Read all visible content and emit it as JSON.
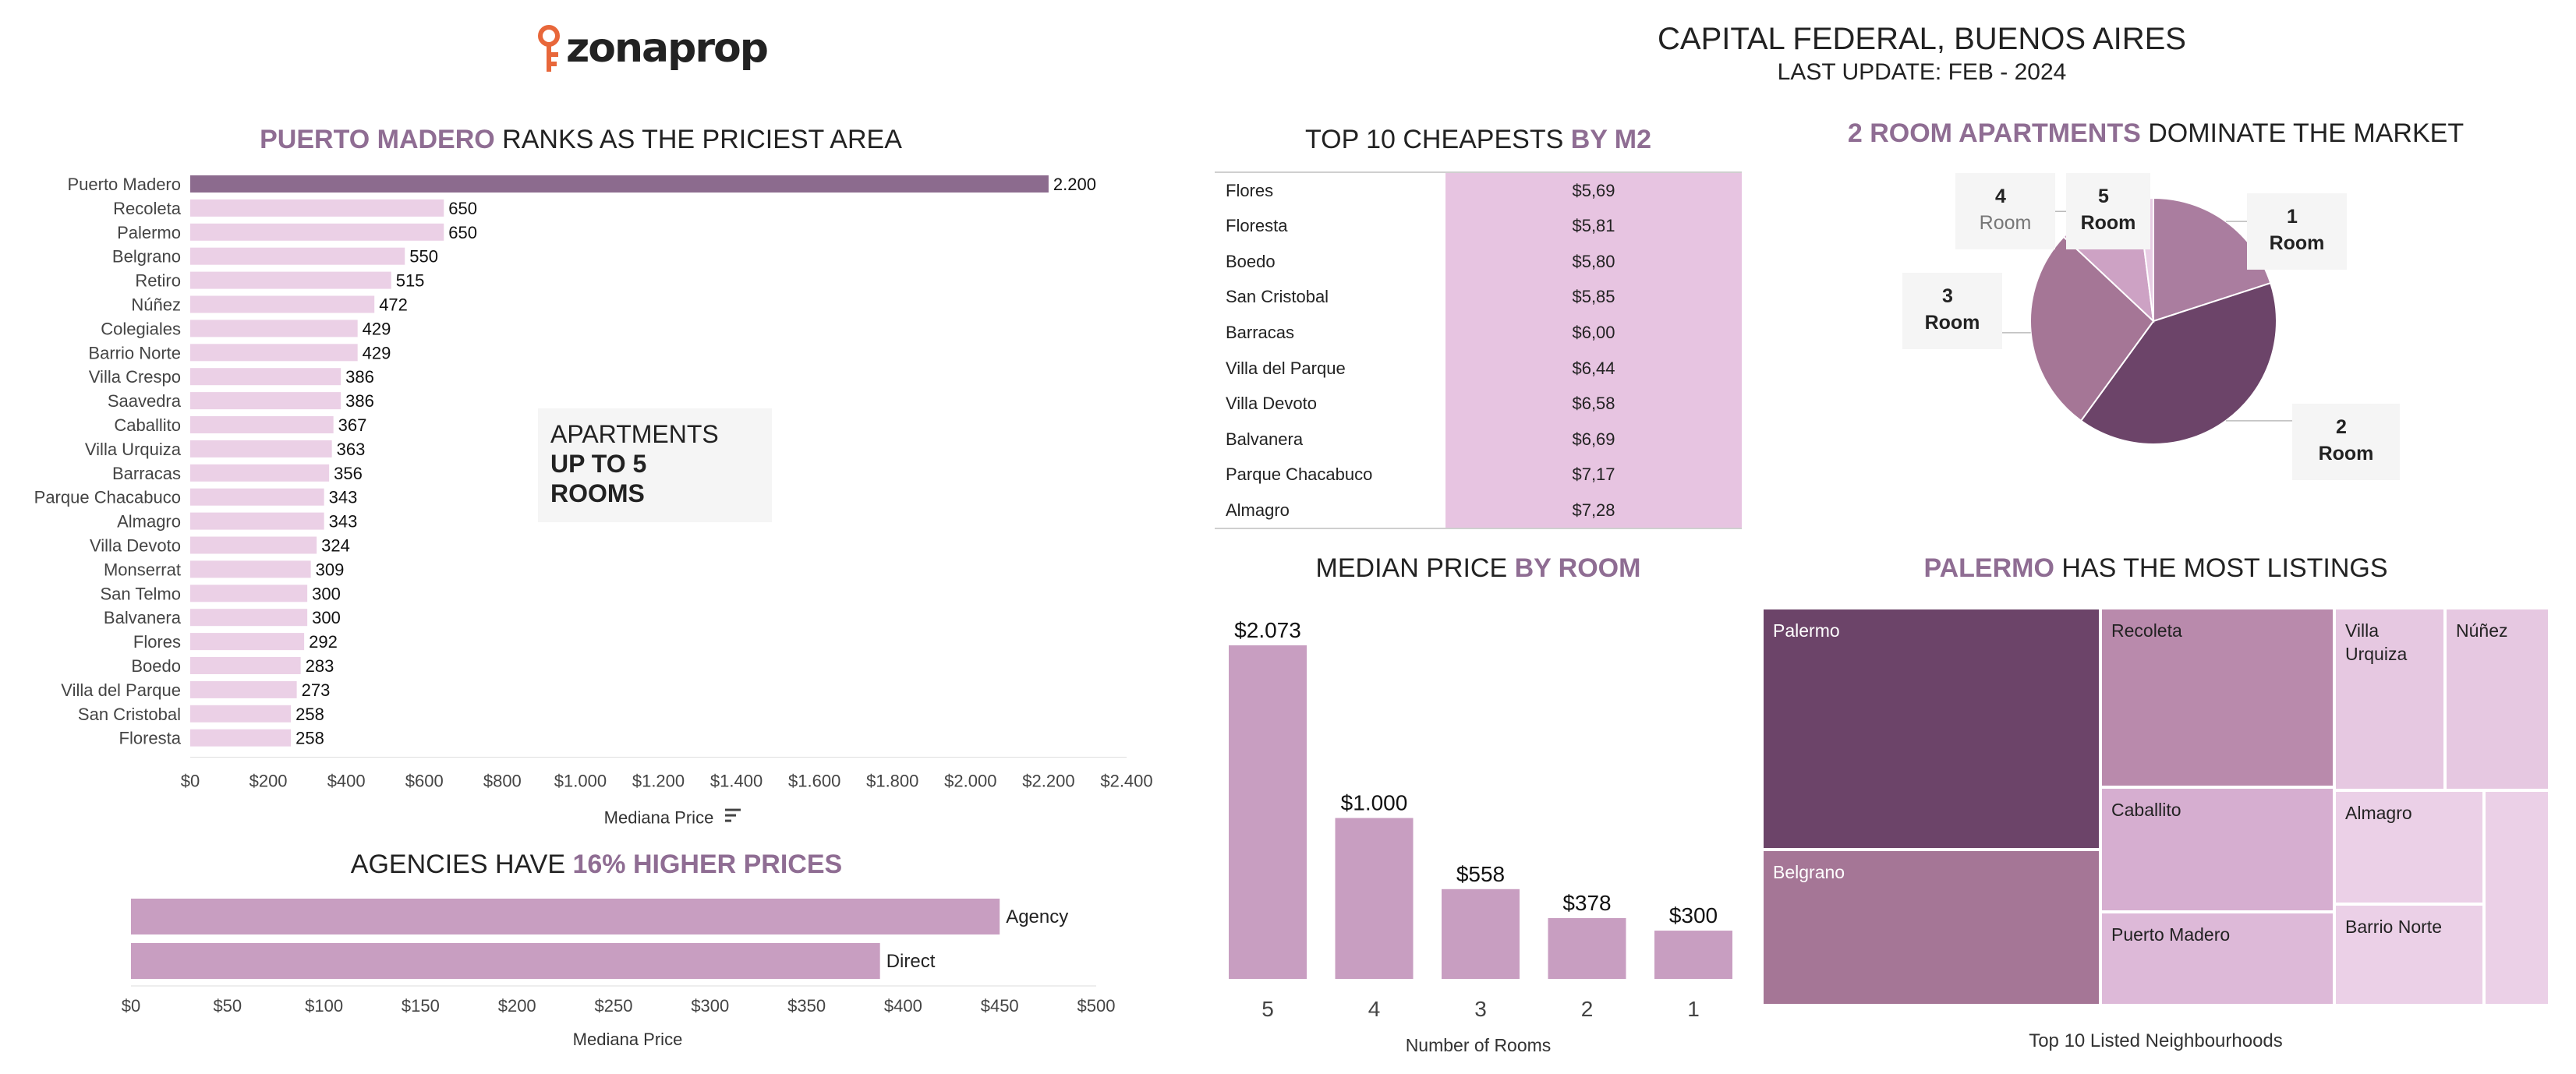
{
  "brand": {
    "logo_text": "zonaprop"
  },
  "header": {
    "title": "CAPITAL FEDERAL, BUENOS AIRES",
    "subtitle": "LAST UPDATE: FEB - 2024"
  },
  "colors": {
    "accent": "#8f6d93",
    "bar_light": "#ebd0e6",
    "bar_dark": "#8c6b8e",
    "bar_mid": "#c89ec1",
    "table_fill": "#e7c4e1"
  },
  "sections": {
    "ranking": {
      "title_accent": "PUERTO MADERO",
      "title_rest": " RANKS AS THE PRICIEST AREA",
      "note_line1": "APARTMENTS",
      "note_line2": "UP TO 5",
      "note_line3": "ROOMS",
      "sort_icon": "sort-descending-icon"
    },
    "cheapest": {
      "title_rest": "TOP 10 CHEAPESTS ",
      "title_accent": "BY M2"
    },
    "pie": {
      "title_accent": "2 ROOM APARTMENTS",
      "title_rest": " DOMINATE THE MARKET"
    },
    "agencies": {
      "title_rest": "AGENCIES HAVE ",
      "title_accent": "16% HIGHER PRICES"
    },
    "median_room": {
      "title_rest": "MEDIAN PRICE ",
      "title_accent": "BY ROOM"
    },
    "listings": {
      "title_accent": "PALERMO",
      "title_rest": " HAS THE MOST LISTINGS"
    }
  },
  "chart_data": [
    {
      "type": "bar",
      "orientation": "horizontal",
      "title": "PUERTO MADERO RANKS AS THE PRICIEST AREA",
      "xlabel": "Mediana Price",
      "categories": [
        "Puerto Madero",
        "Recoleta",
        "Palermo",
        "Belgrano",
        "Retiro",
        "Núñez",
        "Colegiales",
        "Barrio Norte",
        "Villa Crespo",
        "Saavedra",
        "Caballito",
        "Villa Urquiza",
        "Barracas",
        "Parque Chacabuco",
        "Almagro",
        "Villa Devoto",
        "Monserrat",
        "San Telmo",
        "Balvanera",
        "Flores",
        "Boedo",
        "Villa del Parque",
        "San Cristobal",
        "Floresta"
      ],
      "values": [
        2200,
        650,
        650,
        550,
        515,
        472,
        429,
        429,
        386,
        386,
        367,
        363,
        356,
        343,
        343,
        324,
        309,
        300,
        300,
        292,
        283,
        273,
        258,
        258
      ],
      "value_labels": [
        "2.200",
        "650",
        "650",
        "550",
        "515",
        "472",
        "429",
        "429",
        "386",
        "386",
        "367",
        "363",
        "356",
        "343",
        "343",
        "324",
        "309",
        "300",
        "300",
        "292",
        "283",
        "273",
        "258",
        "258"
      ],
      "xlim": [
        0,
        2400
      ],
      "xticks": [
        "$0",
        "$200",
        "$400",
        "$600",
        "$800",
        "$1.000",
        "$1.200",
        "$1.400",
        "$1.600",
        "$1.800",
        "$2.000",
        "$2.200",
        "$2.400"
      ]
    },
    {
      "type": "table",
      "title": "TOP 10 CHEAPESTS BY M2",
      "rows": [
        {
          "name": "Flores",
          "value": "$5,69"
        },
        {
          "name": "Floresta",
          "value": "$5,81"
        },
        {
          "name": "Boedo",
          "value": "$5,80"
        },
        {
          "name": "San Cristobal",
          "value": "$5,85"
        },
        {
          "name": "Barracas",
          "value": "$6,00"
        },
        {
          "name": "Villa del Parque",
          "value": "$6,44"
        },
        {
          "name": "Villa Devoto",
          "value": "$6,58"
        },
        {
          "name": "Balvanera",
          "value": "$6,69"
        },
        {
          "name": "Parque Chacabuco",
          "value": "$7,17"
        },
        {
          "name": "Almagro",
          "value": "$7,28"
        }
      ]
    },
    {
      "type": "pie",
      "title": "2 ROOM APARTMENTS DOMINATE THE MARKET",
      "slices": [
        {
          "num": "1",
          "label": "Room",
          "value": 20,
          "color": "#aa7d9f"
        },
        {
          "num": "2",
          "label": "Room",
          "value": 40,
          "color": "#6c4469"
        },
        {
          "num": "3",
          "label": "Room",
          "value": 27,
          "color": "#a57696"
        },
        {
          "num": "4",
          "label": "Room",
          "value": 11,
          "color": "#cda2c4"
        },
        {
          "num": "5",
          "label": "Room",
          "value": 2,
          "color": "#e8cde4"
        }
      ]
    },
    {
      "type": "bar",
      "orientation": "horizontal",
      "title": "AGENCIES HAVE 16% HIGHER PRICES",
      "xlabel": "Mediana Price",
      "categories": [
        "Agency",
        "Direct"
      ],
      "values": [
        450,
        388
      ],
      "xlim": [
        0,
        500
      ],
      "xticks": [
        "$0",
        "$50",
        "$100",
        "$150",
        "$200",
        "$250",
        "$300",
        "$350",
        "$400",
        "$450",
        "$500"
      ]
    },
    {
      "type": "bar",
      "title": "MEDIAN PRICE BY ROOM",
      "xlabel": "Number of Rooms",
      "categories": [
        "5",
        "4",
        "3",
        "2",
        "1"
      ],
      "values": [
        2073,
        1000,
        558,
        378,
        300
      ],
      "value_labels": [
        "$2.073",
        "$1.000",
        "$558",
        "$378",
        "$300"
      ]
    },
    {
      "type": "treemap",
      "title": "PALERMO HAS THE MOST LISTINGS",
      "xlabel": "Top 10 Listed Neighbourhoods",
      "cells": [
        {
          "name": "Palermo",
          "color": "#6c4469"
        },
        {
          "name": "Belgrano",
          "color": "#a57696"
        },
        {
          "name": "Recoleta",
          "color": "#b98aac"
        },
        {
          "name": "Caballito",
          "color": "#d6aed0"
        },
        {
          "name": "Puerto Madero",
          "color": "#ddb9d8"
        },
        {
          "name": "Villa Urquiza",
          "color": "#e6c8e1"
        },
        {
          "name": "Núñez",
          "color": "#e6c8e1"
        },
        {
          "name": "Almagro",
          "color": "#ebd0e7"
        },
        {
          "name": "Barrio Norte",
          "color": "#ebd0e7"
        },
        {
          "name": "",
          "color": "#ebd0e7"
        }
      ]
    }
  ]
}
